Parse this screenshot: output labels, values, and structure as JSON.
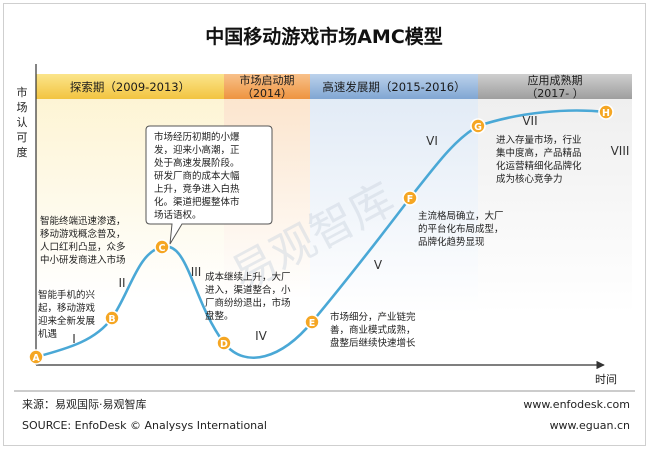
{
  "title": "中国移动游戏市场AMC模型",
  "y_axis_label": [
    "市",
    "场",
    "认",
    "可",
    "度"
  ],
  "x_axis_label": "时间",
  "watermark": "易观智库",
  "phases": [
    {
      "name": "探索期",
      "years": "（2009-2013）",
      "color": "#f6d04d"
    },
    {
      "name": "市场启动期",
      "years": "（2014）",
      "color": "#f2a356"
    },
    {
      "name": "高速发展期",
      "years": "（2015-2016）",
      "color": "#8fb2d9"
    },
    {
      "name": "应用成熟期",
      "years": "（2017-  ）",
      "color": "#a8a8a8"
    }
  ],
  "points": [
    "A",
    "B",
    "C",
    "D",
    "E",
    "F",
    "G",
    "H"
  ],
  "stages": [
    "I",
    "II",
    "III",
    "IV",
    "V",
    "VI",
    "VII",
    "VIII"
  ],
  "annotations": {
    "b": [
      "智能手机的兴",
      "起，移动游戏",
      "迎来全新发展",
      "机遇"
    ],
    "c": [
      "智能终端迅速渗透，",
      "移动游戏概念普及，",
      "人口红利凸显，众多",
      "中小研发商进入市场"
    ],
    "callout": [
      "市场经历初期的小爆",
      "发，迎来小高潮，正",
      "处于高速发展阶段。",
      "研发厂商的成本大幅",
      "上升，竞争进入白热",
      "化。渠道把握整体市",
      "场话语权。"
    ],
    "d": [
      "成本继续上升，大厂",
      "进入，渠道整合，小",
      "厂商纷纷退出，市场",
      "盘整。"
    ],
    "e": [
      "市场细分，产业链完",
      "善，商业模式成熟，",
      "盘整后继续快速增长"
    ],
    "f": [
      "主流格局确立，大厂",
      "的平台化布局成型，",
      "品牌化趋势显现"
    ],
    "g": [
      "进入存量市场，行业",
      "集中度高，产品精品",
      "化运营精细化品牌化",
      "成为核心竞争力"
    ]
  },
  "footer": {
    "source_cn": "来源：易观国际·易观智库",
    "source_en": "SOURCE: EnfoDesk © Analysys International",
    "url1": "www.enfodesk.com",
    "url2": "www.eguan.cn"
  },
  "colors": {
    "curve": "#4aa8d6",
    "point": "#f5a623",
    "axis": "#333333"
  }
}
